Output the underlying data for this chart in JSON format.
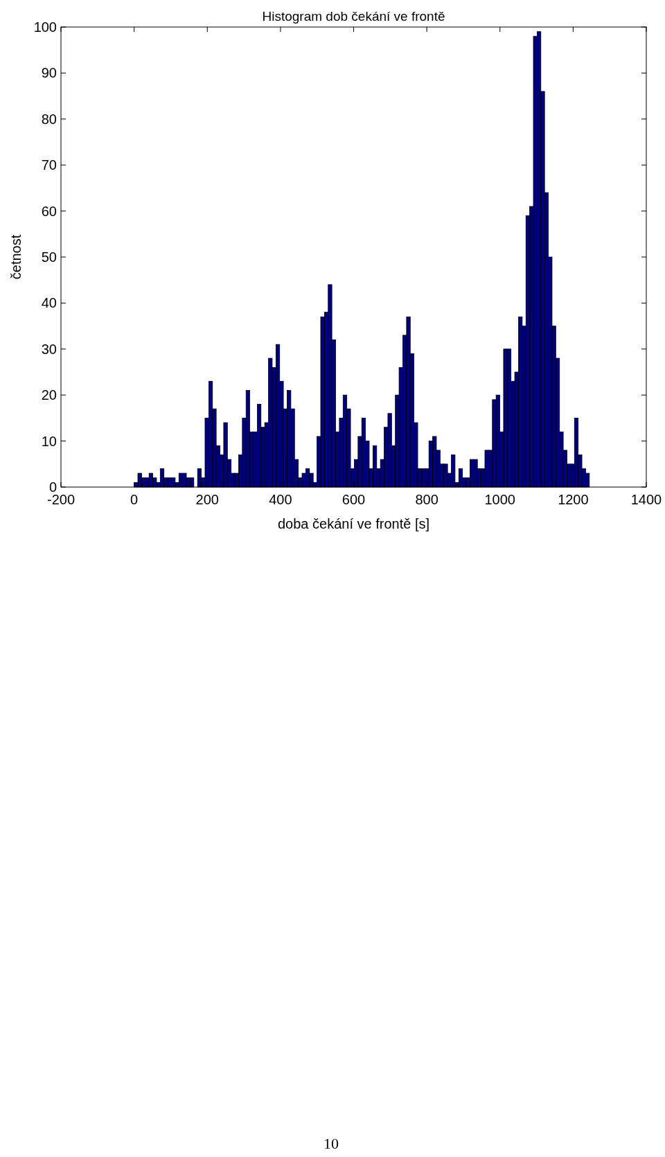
{
  "chart_data": {
    "type": "histogram",
    "title": "Histogram dob čekání ve frontě",
    "xlabel": "doba čekání ve frontě [s]",
    "ylabel": "četnost",
    "annotations": [
      "10"
    ],
    "bins": [
      0,
      10.2,
      20.4,
      30.6,
      40.8,
      51,
      61.2,
      71.4,
      81.6,
      91.8,
      102,
      112.2,
      122.4,
      132.6,
      142.8,
      153,
      163.2,
      173.4,
      183.6,
      193.8,
      204,
      214.2,
      224.4,
      234.6,
      244.8,
      255,
      265.2,
      275.4,
      285.6,
      295.8,
      306,
      316.2,
      326.4,
      336.6,
      346.8,
      357,
      367.2,
      377.4,
      387.6,
      397.8,
      408,
      418.2,
      428.4,
      438.6,
      448.8,
      459,
      469.2,
      479.4,
      489.6,
      499.8,
      510,
      520.2,
      530.4,
      540.6,
      550.8,
      561,
      571.2,
      581.4,
      591.6,
      601.8,
      612,
      622.2,
      632.4,
      642.6,
      652.8,
      663,
      673.2,
      683.4,
      693.6,
      703.8,
      714,
      724.2,
      734.4,
      744.6,
      754.8,
      765,
      775.2,
      785.4,
      795.6,
      805.8,
      816,
      826.2,
      836.4,
      846.6,
      856.8,
      867,
      877.2,
      887.4,
      897.6,
      907.8,
      918,
      928.2,
      938.4,
      948.6,
      958.8,
      969,
      979.2,
      989.4,
      999.6,
      1009.8,
      1020,
      1030.2,
      1040.4,
      1050.6,
      1060.8,
      1071,
      1081.2,
      1091.4,
      1101.6,
      1111.8,
      1122,
      1132.2,
      1142.4,
      1152.6,
      1162.8,
      1173,
      1183.2,
      1193.4,
      1203.6,
      1213.8,
      1224,
      1234.2,
      1244.4
    ],
    "values": [
      1,
      3,
      2,
      2,
      3,
      2,
      1,
      4,
      2,
      2,
      2,
      1,
      3,
      3,
      2,
      2,
      0,
      4,
      2,
      15,
      23,
      17,
      9,
      7,
      14,
      6,
      3,
      3,
      7,
      15,
      21,
      12,
      12,
      18,
      13,
      14,
      28,
      26,
      31,
      23,
      17,
      21,
      17,
      6,
      2,
      3,
      4,
      3,
      1,
      11,
      37,
      38,
      44,
      32,
      12,
      15,
      20,
      17,
      4,
      6,
      11,
      15,
      10,
      4,
      9,
      4,
      6,
      13,
      16,
      9,
      20,
      26,
      33,
      37,
      29,
      14,
      4,
      4,
      4,
      10,
      11,
      8,
      5,
      5,
      3,
      7,
      1,
      4,
      2,
      2,
      6,
      6,
      4,
      4,
      8,
      8,
      19,
      20,
      12,
      30,
      30,
      23,
      25,
      37,
      35,
      59,
      61,
      98,
      99,
      86,
      64,
      50,
      35,
      28,
      12,
      8,
      5,
      5,
      15,
      7,
      4,
      3
    ],
    "color": "#00007f",
    "xlim": [
      -200,
      1400
    ],
    "ylim": [
      0,
      100
    ],
    "xticks": [
      -200,
      0,
      200,
      400,
      600,
      800,
      1000,
      1200,
      1400
    ],
    "yticks": [
      0,
      10,
      20,
      30,
      40,
      50,
      60,
      70,
      80,
      90,
      100
    ],
    "grid": false
  }
}
